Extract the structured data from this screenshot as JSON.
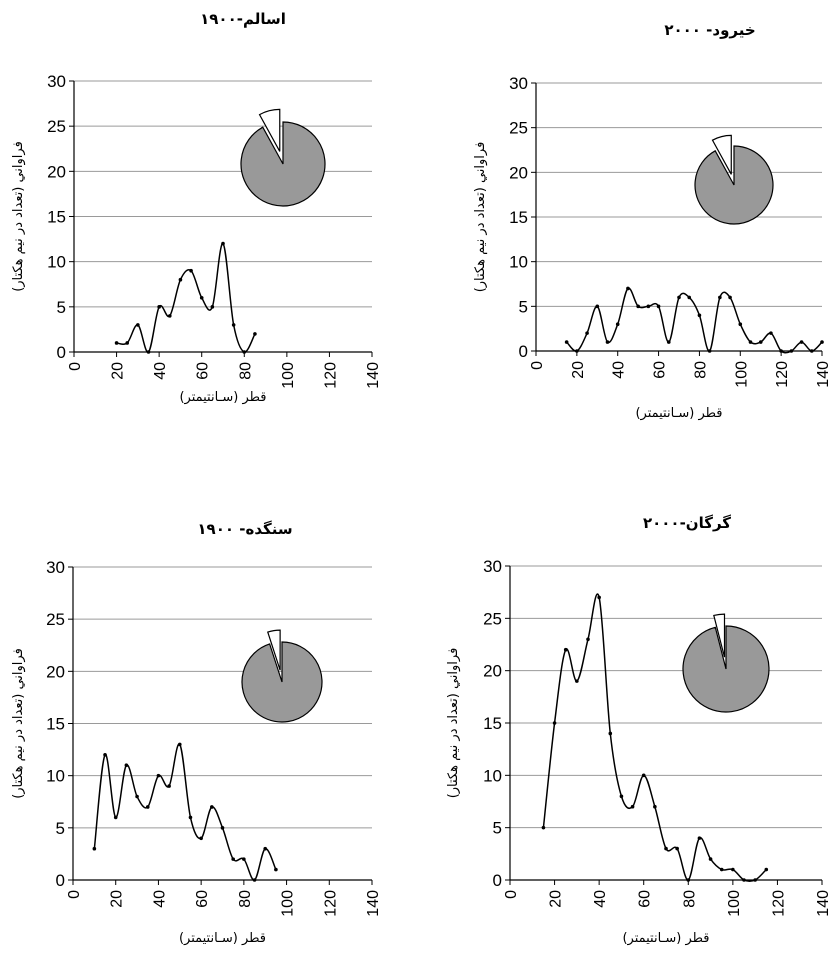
{
  "chart_data": [
    {
      "type": "line",
      "title": "اسالم-۱۹۰۰",
      "xlabel": "قطر (سـانتيمتر)",
      "ylabel": "فراواني (تعداد در نيم هكتار)",
      "xlim": [
        0,
        140
      ],
      "ylim": [
        0,
        30
      ],
      "x_ticks": [
        "0",
        "20",
        "40",
        "60",
        "80",
        "100",
        "120",
        "140"
      ],
      "y_ticks": [
        "0",
        "5",
        "10",
        "15",
        "20",
        "25",
        "30"
      ],
      "grid": true,
      "x": [
        20,
        25,
        30,
        35,
        40,
        45,
        50,
        55,
        60,
        65,
        70,
        75,
        80,
        85
      ],
      "y": [
        1,
        1,
        3,
        0,
        5,
        4,
        8,
        9,
        6,
        5,
        12,
        3,
        0,
        2
      ],
      "pie": {
        "values": [
          92,
          8
        ],
        "colors": [
          "#999999",
          "#ffffff"
        ]
      }
    },
    {
      "type": "line",
      "title": "خيرود- ۲۰۰۰",
      "xlabel": "قطر (سـانتيمتر)",
      "ylabel": "فراواني (تعداد در نيم هكتار)",
      "xlim": [
        0,
        140
      ],
      "ylim": [
        0,
        30
      ],
      "x_ticks": [
        "0",
        "20",
        "40",
        "60",
        "80",
        "100",
        "120",
        "140"
      ],
      "y_ticks": [
        "0",
        "5",
        "10",
        "15",
        "20",
        "25",
        "30"
      ],
      "grid": true,
      "x": [
        15,
        20,
        25,
        30,
        35,
        40,
        45,
        50,
        55,
        60,
        65,
        70,
        75,
        80,
        85,
        90,
        95,
        100,
        105,
        110,
        115,
        120,
        125,
        130,
        135,
        140
      ],
      "y": [
        1,
        0,
        2,
        5,
        1,
        3,
        7,
        5,
        5,
        5,
        1,
        6,
        6,
        4,
        0,
        6,
        6,
        3,
        1,
        1,
        2,
        0,
        0,
        1,
        0,
        1
      ],
      "pie": {
        "values": [
          92,
          8
        ],
        "colors": [
          "#999999",
          "#ffffff"
        ]
      }
    },
    {
      "type": "line",
      "title": "سنگده- ۱۹۰۰",
      "xlabel": "قطر (سـانتيمتر)",
      "ylabel": "فراواني (تعداد در نيم هكتار)",
      "xlim": [
        0,
        140
      ],
      "ylim": [
        0,
        30
      ],
      "x_ticks": [
        "0",
        "20",
        "40",
        "60",
        "80",
        "100",
        "120",
        "140"
      ],
      "y_ticks": [
        "0",
        "5",
        "10",
        "15",
        "20",
        "25",
        "30"
      ],
      "grid": true,
      "x": [
        10,
        15,
        20,
        25,
        30,
        35,
        40,
        45,
        50,
        55,
        60,
        65,
        70,
        75,
        80,
        85,
        90,
        95
      ],
      "y": [
        3,
        12,
        6,
        11,
        8,
        7,
        10,
        9,
        13,
        6,
        4,
        7,
        5,
        2,
        2,
        0,
        3,
        1
      ],
      "pie": {
        "values": [
          95,
          5
        ],
        "colors": [
          "#999999",
          "#ffffff"
        ]
      }
    },
    {
      "type": "line",
      "title": "گرگان-۲۰۰۰",
      "xlabel": "قطر (سـانتيمتر)",
      "ylabel": "فراواني (تعداد در نيم هكتار)",
      "xlim": [
        0,
        140
      ],
      "ylim": [
        0,
        30
      ],
      "x_ticks": [
        "0",
        "20",
        "40",
        "60",
        "80",
        "100",
        "120",
        "140"
      ],
      "y_ticks": [
        "0",
        "5",
        "10",
        "15",
        "20",
        "25",
        "30"
      ],
      "grid": true,
      "x": [
        15,
        20,
        25,
        30,
        35,
        40,
        45,
        50,
        55,
        60,
        65,
        70,
        75,
        80,
        85,
        90,
        95,
        100,
        105,
        110,
        115
      ],
      "y": [
        5,
        15,
        22,
        19,
        23,
        27,
        14,
        8,
        7,
        10,
        7,
        3,
        3,
        0,
        4,
        2,
        1,
        1,
        0,
        0,
        1
      ],
      "pie": {
        "values": [
          96,
          4
        ],
        "colors": [
          "#999999",
          "#ffffff"
        ]
      }
    }
  ]
}
